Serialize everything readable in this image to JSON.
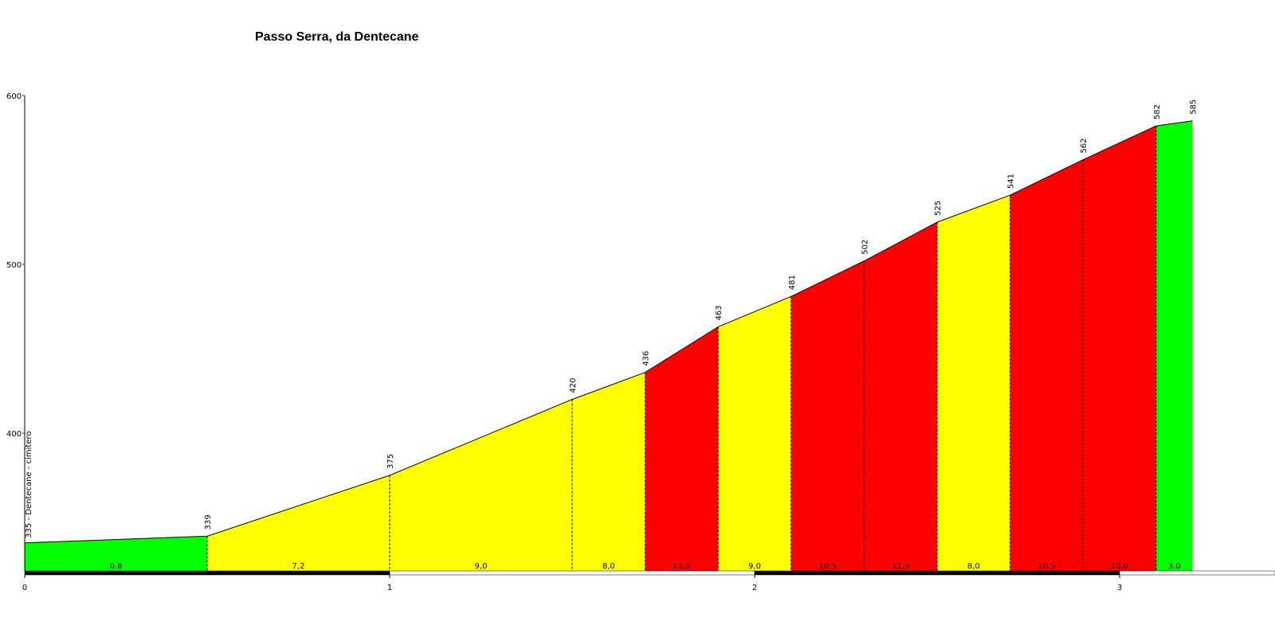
{
  "chart_data": {
    "type": "area",
    "title": "Passo Serra, da Dentecane",
    "xlabel": "",
    "ylabel": "",
    "xlim": [
      0,
      3.37
    ],
    "ylim": [
      320,
      600
    ],
    "y_ticks": [
      400,
      500,
      600
    ],
    "x_ticks": [
      0,
      1,
      2,
      3
    ],
    "grid": false,
    "start_label": "335 - Dentecane - cimitero",
    "points": [
      {
        "x": 0.0,
        "elev": 335,
        "label": ""
      },
      {
        "x": 0.5,
        "elev": 339,
        "label": "339"
      },
      {
        "x": 1.0,
        "elev": 375,
        "label": "375"
      },
      {
        "x": 1.5,
        "elev": 420,
        "label": "420"
      },
      {
        "x": 1.7,
        "elev": 436,
        "label": "436"
      },
      {
        "x": 1.9,
        "elev": 463,
        "label": "463"
      },
      {
        "x": 2.1,
        "elev": 481,
        "label": "481"
      },
      {
        "x": 2.3,
        "elev": 502,
        "label": "502"
      },
      {
        "x": 2.5,
        "elev": 525,
        "label": "525"
      },
      {
        "x": 2.7,
        "elev": 541,
        "label": "541"
      },
      {
        "x": 2.9,
        "elev": 562,
        "label": "562"
      },
      {
        "x": 3.1,
        "elev": 582,
        "label": "582"
      },
      {
        "x": 3.2,
        "elev": 585,
        "label": "585"
      }
    ],
    "segments": [
      {
        "gradient": "0,8",
        "color": "#00ff00"
      },
      {
        "gradient": "7,2",
        "color": "#ffff00"
      },
      {
        "gradient": "9,0",
        "color": "#ffff00"
      },
      {
        "gradient": "8,0",
        "color": "#ffff00"
      },
      {
        "gradient": "13,5",
        "color": "#ff0000"
      },
      {
        "gradient": "9,0",
        "color": "#ffff00"
      },
      {
        "gradient": "10,5",
        "color": "#ff0000"
      },
      {
        "gradient": "11,5",
        "color": "#ff0000"
      },
      {
        "gradient": "8,0",
        "color": "#ffff00"
      },
      {
        "gradient": "10,5",
        "color": "#ff0000"
      },
      {
        "gradient": "10,0",
        "color": "#ff0000"
      },
      {
        "gradient": "3,0",
        "color": "#00ff00"
      }
    ]
  }
}
